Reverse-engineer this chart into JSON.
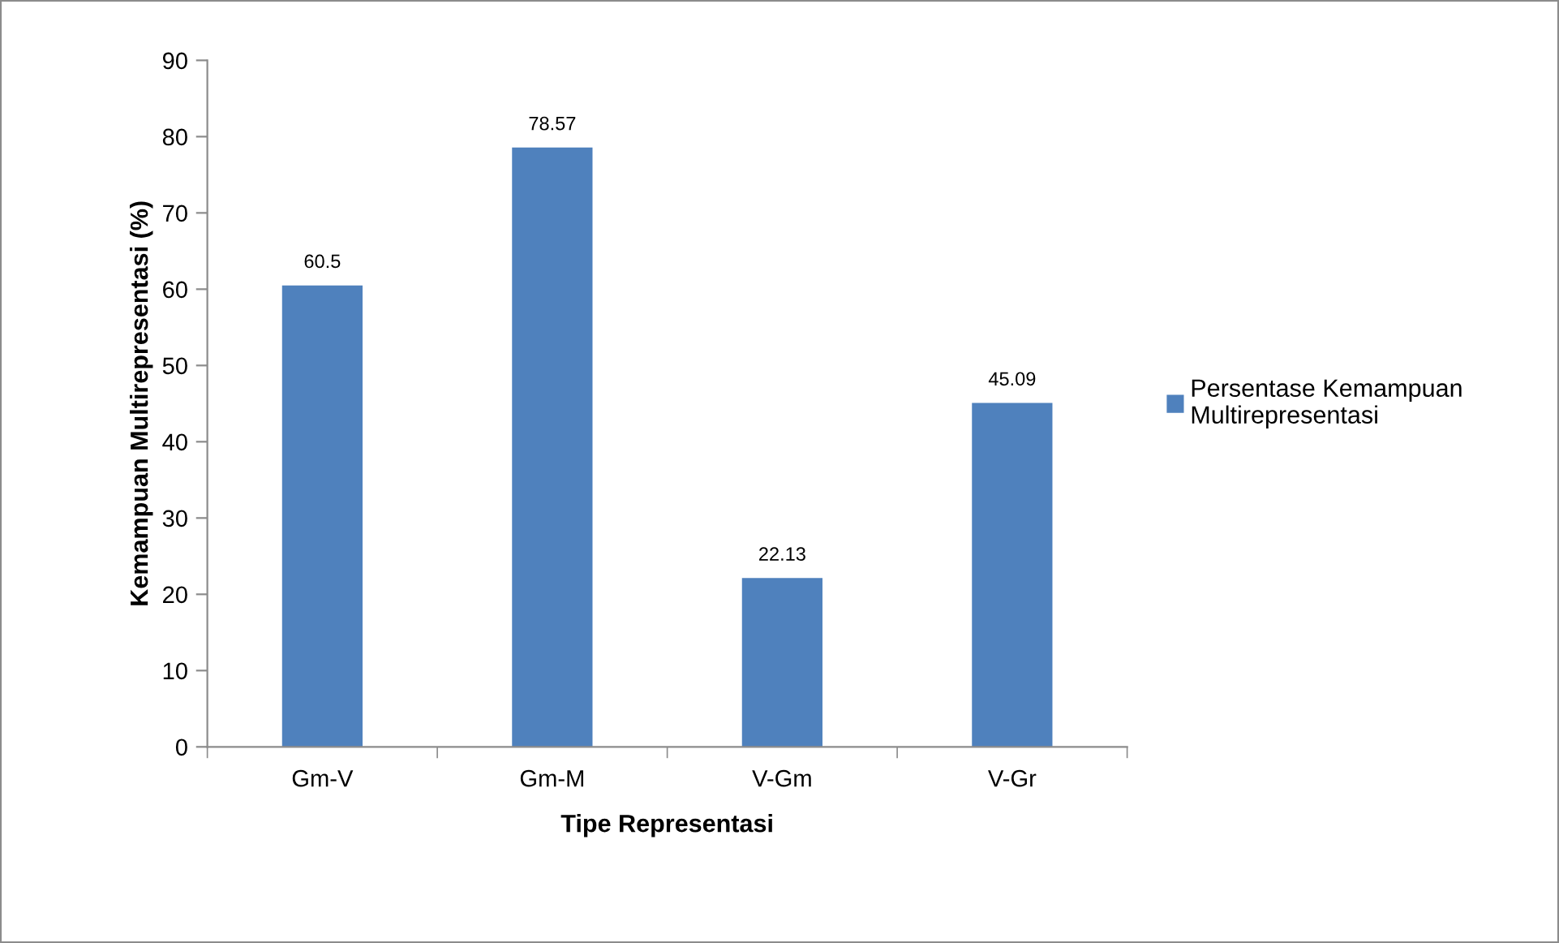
{
  "chart_data": {
    "type": "bar",
    "xlabel": "Tipe Representasi",
    "ylabel": "Kemampuan Multirepresentasi (%)",
    "categories": [
      "Gm-V",
      "Gm-M",
      "V-Gm",
      "V-Gr"
    ],
    "series": [
      {
        "name": "Persentase Kemampuan Multirepresentasi",
        "color": "#4f81bd",
        "values": [
          60.5,
          78.57,
          22.13,
          45.09
        ]
      }
    ],
    "ylim": [
      0,
      90
    ],
    "yticks": [
      0,
      10,
      20,
      30,
      40,
      50,
      60,
      70,
      80,
      90
    ],
    "data_labels": true,
    "grid": false,
    "legend": "right"
  }
}
